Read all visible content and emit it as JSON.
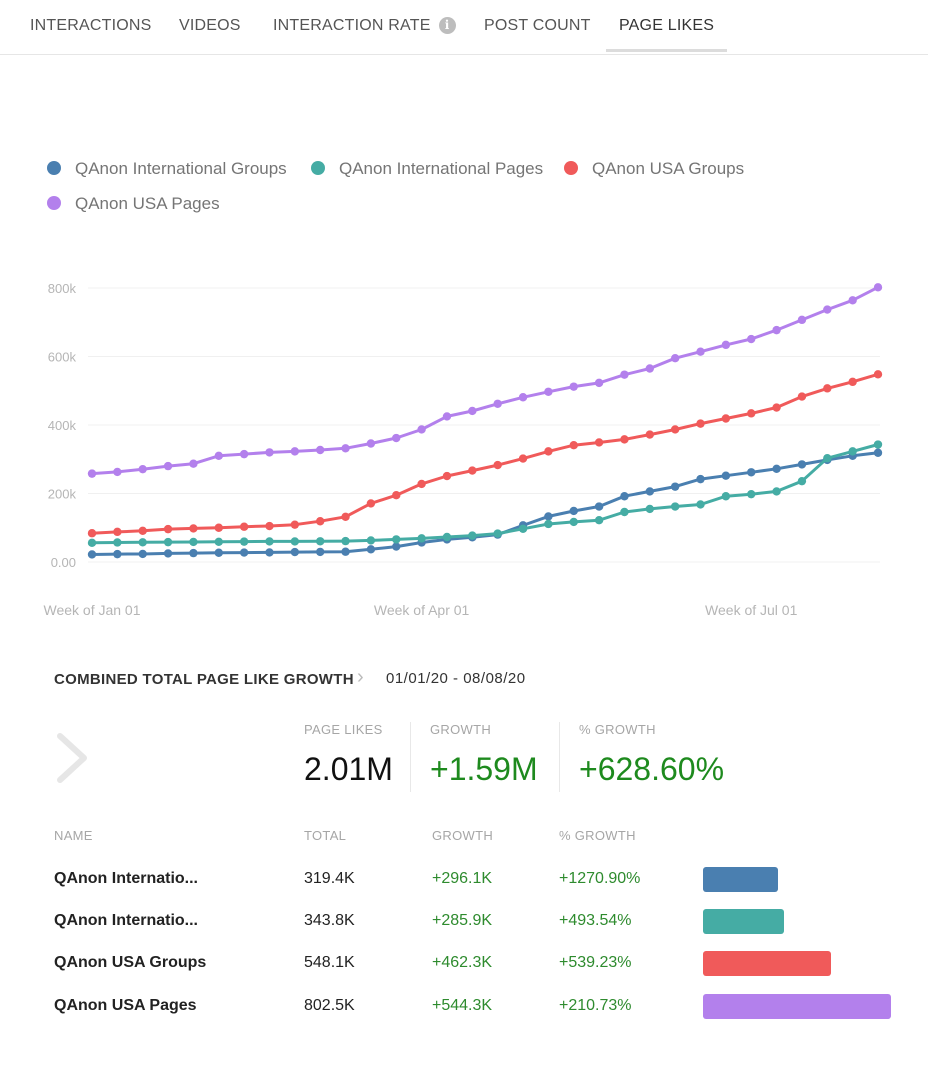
{
  "tabs": [
    {
      "label": "INTERACTIONS",
      "active": false
    },
    {
      "label": "VIDEOS",
      "active": false
    },
    {
      "label": "INTERACTION RATE",
      "active": false,
      "info_icon": "info-icon"
    },
    {
      "label": "POST COUNT",
      "active": false
    },
    {
      "label": "PAGE LIKES",
      "active": true
    }
  ],
  "legend": [
    {
      "label": "QAnon International Groups",
      "color": "#4a7fb0"
    },
    {
      "label": "QAnon International Pages",
      "color": "#45aca4"
    },
    {
      "label": "QAnon USA Groups",
      "color": "#f05a5a"
    },
    {
      "label": "QAnon USA Pages",
      "color": "#b380ec"
    }
  ],
  "chart_data": {
    "type": "line",
    "x_tick_labels": [
      "Week of Jan 01",
      "Week of Apr 01",
      "Week of Jul 01"
    ],
    "x_tick_indices": [
      0,
      13,
      26
    ],
    "y_ticks": [
      0,
      200000,
      400000,
      600000,
      800000
    ],
    "y_tick_labels": [
      "0.00",
      "200k",
      "400k",
      "600k",
      "800k"
    ],
    "ylim": [
      0,
      820000
    ],
    "grid": true,
    "legend_position": "top-left",
    "series": [
      {
        "name": "QAnon International Groups",
        "color": "#4a7fb0",
        "values": [
          22000,
          23000,
          23500,
          25000,
          26000,
          27000,
          27500,
          28000,
          29000,
          29500,
          30000,
          37000,
          45000,
          57000,
          66000,
          72000,
          80000,
          107000,
          133000,
          149000,
          162000,
          192000,
          206000,
          220000,
          242000,
          252000,
          262000,
          272000,
          285000,
          298000,
          310000,
          319000
        ]
      },
      {
        "name": "QAnon International Pages",
        "color": "#45aca4",
        "values": [
          56000,
          57000,
          57500,
          58000,
          58500,
          59000,
          59500,
          60000,
          60000,
          60500,
          61000,
          63000,
          66000,
          69000,
          73000,
          77000,
          83000,
          97000,
          111000,
          117000,
          122000,
          146000,
          155000,
          162000,
          168000,
          192000,
          198000,
          206000,
          236000,
          303000,
          323000,
          343000
        ]
      },
      {
        "name": "QAnon USA Groups",
        "color": "#f05a5a",
        "values": [
          84000,
          88000,
          91000,
          96000,
          98000,
          100000,
          103000,
          105000,
          109000,
          119000,
          132000,
          171000,
          195000,
          228000,
          251000,
          267000,
          283000,
          302000,
          323000,
          341000,
          349000,
          358000,
          372000,
          387000,
          404000,
          419000,
          434000,
          451000,
          483000,
          507000,
          526000,
          548000
        ]
      },
      {
        "name": "QAnon USA Pages",
        "color": "#b380ec",
        "values": [
          258000,
          263000,
          271000,
          280000,
          287000,
          310000,
          315000,
          320000,
          323000,
          327000,
          332000,
          346000,
          362000,
          387000,
          425000,
          441000,
          462000,
          481000,
          497000,
          512000,
          523000,
          547000,
          565000,
          595000,
          614000,
          634000,
          651000,
          677000,
          707000,
          737000,
          764000,
          802000
        ]
      }
    ]
  },
  "summary": {
    "title": "COMBINED TOTAL PAGE LIKE GROWTH",
    "date_range": "01/01/20 - 08/08/20",
    "page_likes_label": "PAGE LIKES",
    "page_likes_value": "2.01M",
    "growth_label": "GROWTH",
    "growth_value": "+1.59M",
    "pct_growth_label": "% GROWTH",
    "pct_growth_value": "+628.60%"
  },
  "table": {
    "headers": {
      "name": "NAME",
      "total": "TOTAL",
      "growth": "GROWTH",
      "pct": "% GROWTH"
    },
    "rows": [
      {
        "name": "QAnon Internatio...",
        "total": "319.4K",
        "growth": "+296.1K",
        "pct": "+1270.90%",
        "color": "#4a7fb0",
        "bar_value": 319.4
      },
      {
        "name": "QAnon Internatio...",
        "total": "343.8K",
        "growth": "+285.9K",
        "pct": "+493.54%",
        "color": "#45aca4",
        "bar_value": 343.8
      },
      {
        "name": "QAnon USA Groups",
        "total": "548.1K",
        "growth": "+462.3K",
        "pct": "+539.23%",
        "color": "#f05a5a",
        "bar_value": 548.1
      },
      {
        "name": "QAnon USA Pages",
        "total": "802.5K",
        "growth": "+544.3K",
        "pct": "+210.73%",
        "color": "#b380ec",
        "bar_value": 802.5
      }
    ]
  }
}
